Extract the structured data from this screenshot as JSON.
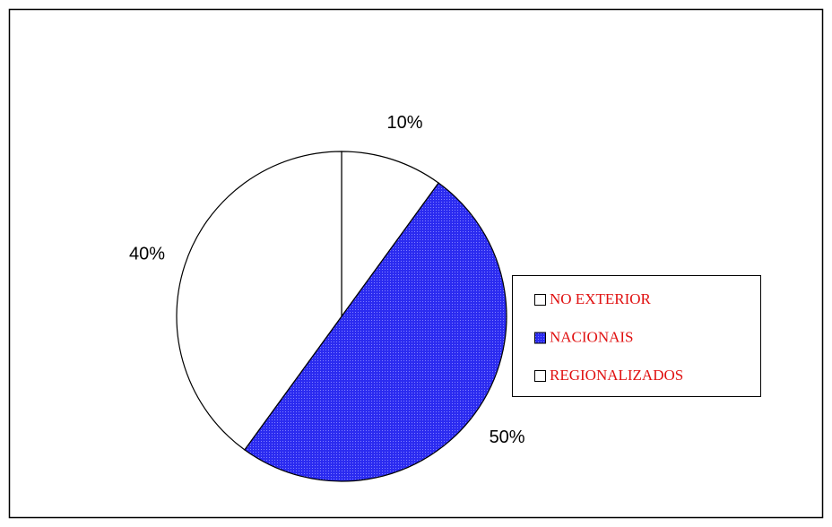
{
  "chart_data": {
    "type": "pie",
    "categories": [
      "NO EXTERIOR",
      "NACIONAIS",
      "REGIONALIZADOS"
    ],
    "values": [
      10,
      50,
      40
    ],
    "value_labels": [
      "10%",
      "50%",
      "40%"
    ],
    "colors": [
      "#ffffff",
      "#2b2bf0",
      "#ffffff"
    ],
    "legend": "right"
  }
}
